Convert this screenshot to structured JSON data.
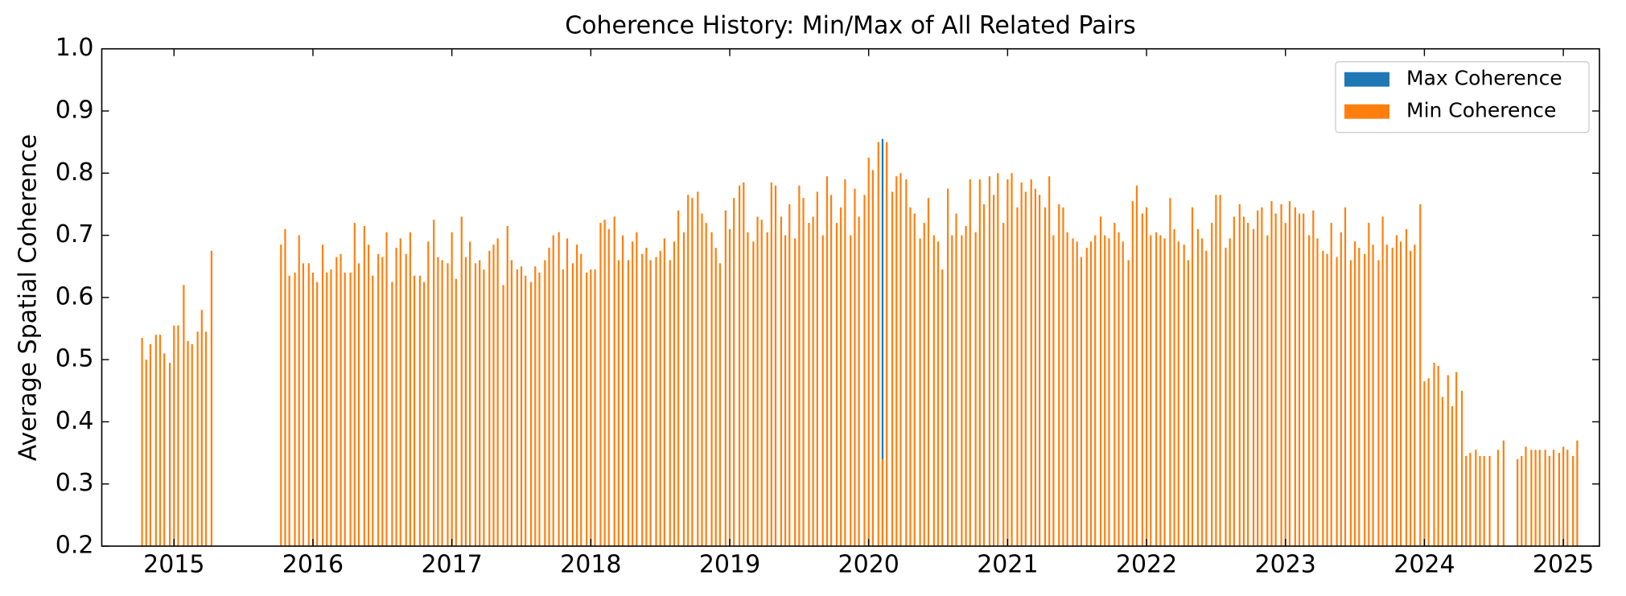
{
  "chart_data": {
    "type": "bar",
    "title": "Coherence History: Min/Max of All Related Pairs",
    "ylabel": "Average Spatial Coherence",
    "xlim": [
      2014.48,
      2025.26
    ],
    "xticks": [
      2015,
      2016,
      2017,
      2018,
      2019,
      2020,
      2021,
      2022,
      2023,
      2024,
      2025
    ],
    "ylim": [
      0.2,
      1.0
    ],
    "yticks": [
      0.2,
      0.3,
      0.4,
      0.5,
      0.6,
      0.7,
      0.8,
      0.9,
      {
        "value": 1.0,
        "label": "1.0"
      }
    ],
    "legend": "upper right",
    "series": [
      {
        "name": "Max Coherence",
        "color": "#1f77b4",
        "x": [
          2020.1
        ],
        "values": [
          0.855
        ]
      },
      {
        "name": "Min Coherence",
        "color": "#ff7f0e",
        "x": [
          2014.77,
          2014.8,
          2014.83,
          2014.87,
          2014.9,
          2014.93,
          2014.97,
          2015.0,
          2015.03,
          2015.07,
          2015.1,
          2015.13,
          2015.17,
          2015.2,
          2015.23,
          2015.27,
          2015.77,
          2015.8,
          2015.83,
          2015.87,
          2015.9,
          2015.93,
          2015.97,
          2016.0,
          2016.03,
          2016.07,
          2016.1,
          2016.13,
          2016.17,
          2016.2,
          2016.23,
          2016.27,
          2016.3,
          2016.33,
          2016.37,
          2016.4,
          2016.43,
          2016.47,
          2016.5,
          2016.53,
          2016.57,
          2016.6,
          2016.63,
          2016.67,
          2016.7,
          2016.73,
          2016.77,
          2016.8,
          2016.83,
          2016.87,
          2016.9,
          2016.93,
          2016.97,
          2017.0,
          2017.03,
          2017.07,
          2017.1,
          2017.13,
          2017.17,
          2017.2,
          2017.23,
          2017.27,
          2017.3,
          2017.33,
          2017.37,
          2017.4,
          2017.43,
          2017.47,
          2017.5,
          2017.53,
          2017.57,
          2017.6,
          2017.63,
          2017.67,
          2017.7,
          2017.73,
          2017.77,
          2017.8,
          2017.83,
          2017.87,
          2017.9,
          2017.93,
          2017.97,
          2018.0,
          2018.03,
          2018.07,
          2018.1,
          2018.13,
          2018.17,
          2018.2,
          2018.23,
          2018.27,
          2018.3,
          2018.33,
          2018.37,
          2018.4,
          2018.43,
          2018.47,
          2018.5,
          2018.53,
          2018.57,
          2018.6,
          2018.63,
          2018.67,
          2018.7,
          2018.73,
          2018.77,
          2018.8,
          2018.83,
          2018.87,
          2018.9,
          2018.93,
          2018.97,
          2019.0,
          2019.03,
          2019.07,
          2019.1,
          2019.13,
          2019.17,
          2019.2,
          2019.23,
          2019.27,
          2019.3,
          2019.33,
          2019.37,
          2019.4,
          2019.43,
          2019.47,
          2019.5,
          2019.53,
          2019.57,
          2019.6,
          2019.63,
          2019.67,
          2019.7,
          2019.73,
          2019.77,
          2019.8,
          2019.83,
          2019.87,
          2019.9,
          2019.93,
          2019.97,
          2020.0,
          2020.03,
          2020.07,
          2020.1,
          2020.13,
          2020.17,
          2020.2,
          2020.23,
          2020.27,
          2020.3,
          2020.33,
          2020.37,
          2020.4,
          2020.43,
          2020.47,
          2020.5,
          2020.53,
          2020.57,
          2020.6,
          2020.63,
          2020.67,
          2020.7,
          2020.73,
          2020.77,
          2020.8,
          2020.83,
          2020.87,
          2020.9,
          2020.93,
          2020.97,
          2021.0,
          2021.03,
          2021.07,
          2021.1,
          2021.13,
          2021.17,
          2021.2,
          2021.23,
          2021.27,
          2021.3,
          2021.33,
          2021.37,
          2021.4,
          2021.43,
          2021.47,
          2021.5,
          2021.53,
          2021.57,
          2021.6,
          2021.63,
          2021.67,
          2021.7,
          2021.73,
          2021.77,
          2021.8,
          2021.83,
          2021.87,
          2021.9,
          2021.93,
          2021.97,
          2022.0,
          2022.03,
          2022.07,
          2022.1,
          2022.13,
          2022.17,
          2022.2,
          2022.23,
          2022.27,
          2022.3,
          2022.33,
          2022.37,
          2022.4,
          2022.43,
          2022.47,
          2022.5,
          2022.53,
          2022.57,
          2022.6,
          2022.63,
          2022.67,
          2022.7,
          2022.73,
          2022.77,
          2022.8,
          2022.83,
          2022.87,
          2022.9,
          2022.93,
          2022.97,
          2023.0,
          2023.03,
          2023.07,
          2023.1,
          2023.13,
          2023.17,
          2023.2,
          2023.23,
          2023.27,
          2023.3,
          2023.33,
          2023.37,
          2023.4,
          2023.43,
          2023.47,
          2023.5,
          2023.53,
          2023.57,
          2023.6,
          2023.63,
          2023.67,
          2023.7,
          2023.73,
          2023.77,
          2023.8,
          2023.83,
          2023.87,
          2023.9,
          2023.93,
          2023.97,
          2024.0,
          2024.03,
          2024.07,
          2024.1,
          2024.13,
          2024.17,
          2024.2,
          2024.23,
          2024.27,
          2024.3,
          2024.33,
          2024.37,
          2024.4,
          2024.43,
          2024.47,
          2024.53,
          2024.57,
          2024.67,
          2024.7,
          2024.73,
          2024.77,
          2024.8,
          2024.83,
          2024.87,
          2024.9,
          2024.93,
          2024.97,
          2025.0,
          2025.03,
          2025.07,
          2025.1
        ],
        "values": [
          0.535,
          0.5,
          0.525,
          0.54,
          0.54,
          0.51,
          0.495,
          0.555,
          0.555,
          0.62,
          0.53,
          0.525,
          0.545,
          0.58,
          0.545,
          0.675,
          0.685,
          0.71,
          0.635,
          0.64,
          0.7,
          0.655,
          0.655,
          0.64,
          0.625,
          0.685,
          0.64,
          0.645,
          0.665,
          0.67,
          0.64,
          0.64,
          0.72,
          0.655,
          0.715,
          0.685,
          0.635,
          0.67,
          0.665,
          0.705,
          0.625,
          0.68,
          0.695,
          0.67,
          0.705,
          0.635,
          0.635,
          0.625,
          0.69,
          0.725,
          0.665,
          0.66,
          0.655,
          0.705,
          0.63,
          0.73,
          0.665,
          0.69,
          0.655,
          0.66,
          0.645,
          0.675,
          0.685,
          0.695,
          0.62,
          0.715,
          0.66,
          0.645,
          0.65,
          0.635,
          0.625,
          0.65,
          0.64,
          0.66,
          0.68,
          0.7,
          0.705,
          0.645,
          0.695,
          0.655,
          0.685,
          0.67,
          0.64,
          0.645,
          0.645,
          0.72,
          0.725,
          0.71,
          0.73,
          0.66,
          0.7,
          0.66,
          0.69,
          0.705,
          0.67,
          0.68,
          0.66,
          0.665,
          0.675,
          0.695,
          0.66,
          0.69,
          0.74,
          0.705,
          0.765,
          0.76,
          0.77,
          0.735,
          0.72,
          0.705,
          0.68,
          0.655,
          0.74,
          0.71,
          0.76,
          0.78,
          0.785,
          0.705,
          0.69,
          0.73,
          0.725,
          0.705,
          0.785,
          0.78,
          0.73,
          0.7,
          0.75,
          0.695,
          0.78,
          0.76,
          0.72,
          0.73,
          0.77,
          0.7,
          0.795,
          0.765,
          0.72,
          0.745,
          0.79,
          0.7,
          0.775,
          0.73,
          0.765,
          0.825,
          0.805,
          0.85,
          0.34,
          0.85,
          0.77,
          0.795,
          0.8,
          0.79,
          0.745,
          0.735,
          0.695,
          0.72,
          0.76,
          0.7,
          0.69,
          0.645,
          0.775,
          0.7,
          0.735,
          0.7,
          0.715,
          0.79,
          0.705,
          0.79,
          0.75,
          0.795,
          0.765,
          0.8,
          0.72,
          0.79,
          0.8,
          0.745,
          0.785,
          0.77,
          0.79,
          0.775,
          0.765,
          0.745,
          0.795,
          0.7,
          0.75,
          0.745,
          0.705,
          0.695,
          0.69,
          0.665,
          0.68,
          0.69,
          0.7,
          0.73,
          0.7,
          0.695,
          0.72,
          0.705,
          0.69,
          0.66,
          0.755,
          0.78,
          0.735,
          0.745,
          0.7,
          0.705,
          0.7,
          0.695,
          0.76,
          0.71,
          0.69,
          0.685,
          0.66,
          0.745,
          0.71,
          0.695,
          0.675,
          0.72,
          0.765,
          0.765,
          0.68,
          0.695,
          0.73,
          0.75,
          0.73,
          0.72,
          0.71,
          0.74,
          0.745,
          0.7,
          0.755,
          0.735,
          0.75,
          0.72,
          0.755,
          0.745,
          0.735,
          0.735,
          0.7,
          0.74,
          0.695,
          0.675,
          0.67,
          0.72,
          0.665,
          0.705,
          0.745,
          0.66,
          0.69,
          0.68,
          0.67,
          0.72,
          0.685,
          0.66,
          0.73,
          0.685,
          0.68,
          0.7,
          0.69,
          0.71,
          0.675,
          0.685,
          0.75,
          0.465,
          0.47,
          0.495,
          0.49,
          0.44,
          0.475,
          0.425,
          0.48,
          0.45,
          0.345,
          0.35,
          0.355,
          0.345,
          0.345,
          0.345,
          0.355,
          0.37,
          0.34,
          0.345,
          0.36,
          0.355,
          0.355,
          0.355,
          0.355,
          0.345,
          0.355,
          0.35,
          0.36,
          0.355,
          0.345,
          0.37
        ]
      }
    ]
  }
}
